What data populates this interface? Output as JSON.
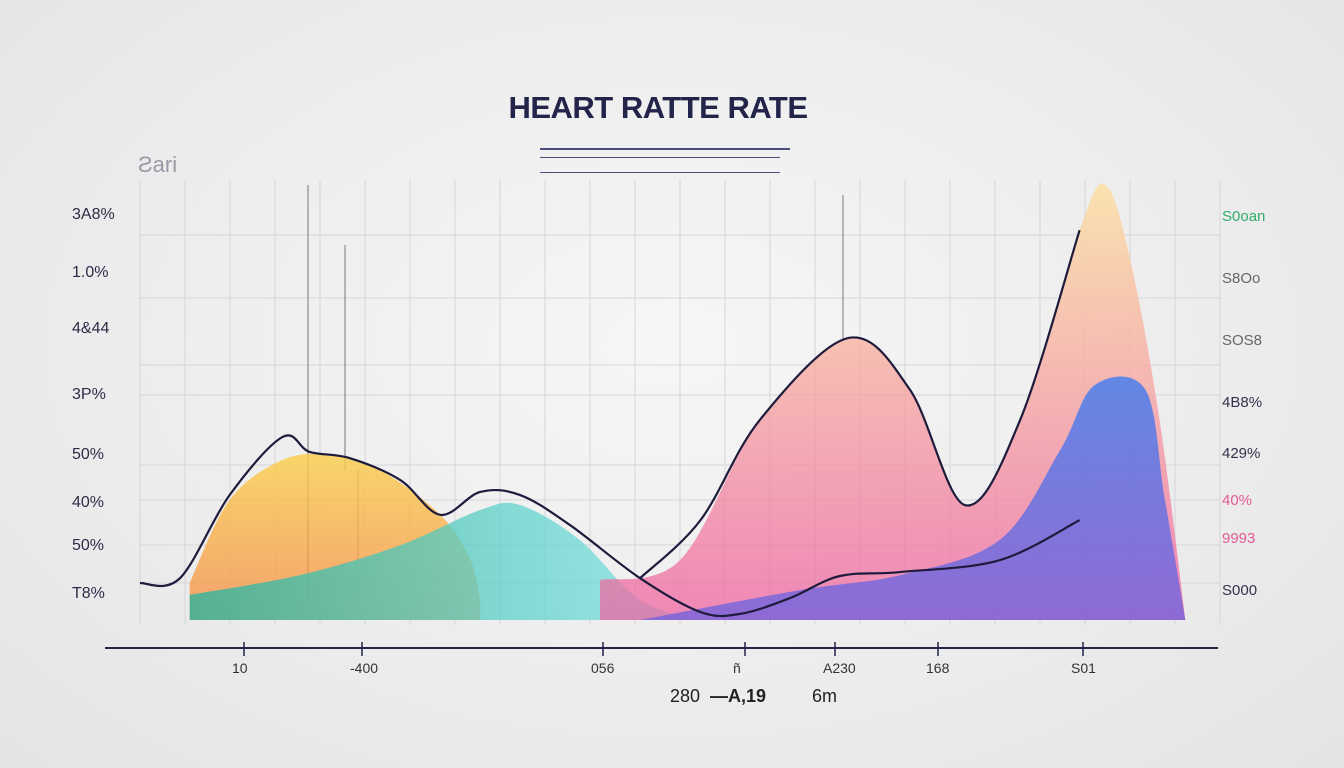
{
  "chart_data": {
    "type": "area",
    "title": "HEART RATTE RATE",
    "corner_label": "Ƨari",
    "y_ticks_left": [
      "3A8%",
      "1.0%",
      "4&44",
      "3P%",
      "50%",
      "40%",
      "50%",
      "T8%"
    ],
    "y_ticks_right": [
      {
        "text": "S0oan",
        "color": "#2fae6a"
      },
      {
        "text": "S8Oo",
        "color": "#666666"
      },
      {
        "text": "SOS8",
        "color": "#666666"
      },
      {
        "text": "4B8%",
        "color": "#33334f"
      },
      {
        "text": "429%",
        "color": "#33334f"
      },
      {
        "text": "40%",
        "color": "#e45a96"
      },
      {
        "text": "9993",
        "color": "#e45a96"
      },
      {
        "text": "S000",
        "color": "#33334f"
      }
    ],
    "x_ticks": [
      "10",
      "-400",
      "056",
      "ñ",
      "A230",
      "168",
      "S01"
    ],
    "x_subtitle": [
      "280",
      "—A,19",
      "6m"
    ],
    "grid": true,
    "xlim": [
      0,
      100
    ],
    "ylim": [
      0,
      100
    ],
    "series": [
      {
        "fill": [
          "#fbd04a",
          "#f7863c"
        ],
        "points": [
          [
            4.6,
            8.4
          ],
          [
            8.3,
            27.3
          ],
          [
            13.2,
            36.4
          ],
          [
            17.6,
            37.5
          ],
          [
            22.2,
            34.1
          ],
          [
            27.8,
            23.9
          ],
          [
            30.6,
            13.6
          ],
          [
            31.5,
            4.5
          ]
        ]
      },
      {
        "fill": [
          "#2fb39b",
          "#7de4e6"
        ],
        "points": [
          [
            4.6,
            5.7
          ],
          [
            14.8,
            10.2
          ],
          [
            24.1,
            17
          ],
          [
            31.5,
            25
          ],
          [
            35.2,
            26.1
          ],
          [
            40.7,
            18.2
          ],
          [
            46.3,
            4.5
          ],
          [
            51.9,
            0
          ]
        ]
      },
      {
        "fill": [
          "#fde0a0",
          "#ef5fa0"
        ],
        "points": [
          [
            42.6,
            9.1
          ],
          [
            50,
            13.6
          ],
          [
            57.4,
            45.5
          ],
          [
            65.6,
            64.1
          ],
          [
            71.3,
            52.3
          ],
          [
            76.4,
            26.1
          ],
          [
            81.5,
            45.5
          ],
          [
            87,
            88.6
          ],
          [
            89.4,
            98.9
          ],
          [
            91.7,
            81.8
          ],
          [
            94.4,
            45.5
          ],
          [
            96.8,
            0
          ]
        ]
      },
      {
        "fill": [
          "#3f7cf0",
          "#6a5fe0"
        ],
        "points": [
          [
            46.3,
            0
          ],
          [
            61.1,
            6.8
          ],
          [
            70.4,
            10.2
          ],
          [
            79.6,
            18.2
          ],
          [
            85.2,
            38.6
          ],
          [
            88.4,
            53.4
          ],
          [
            93.1,
            52.3
          ],
          [
            94.9,
            27.3
          ],
          [
            96.8,
            0
          ]
        ]
      }
    ],
    "lines": [
      {
        "color": "#1e1b3c",
        "points": [
          [
            0,
            8.4
          ],
          [
            3.7,
            9.5
          ],
          [
            8.3,
            28.4
          ],
          [
            13.2,
            41.6
          ],
          [
            15.7,
            38.2
          ],
          [
            19.4,
            36.8
          ],
          [
            24.1,
            31.8
          ],
          [
            27.8,
            23.9
          ],
          [
            31.5,
            29.1
          ],
          [
            35.2,
            28.4
          ],
          [
            39.8,
            21.6
          ],
          [
            46.3,
            9.5
          ],
          [
            51.9,
            1.8
          ],
          [
            55.6,
            1.4
          ],
          [
            60.2,
            5
          ],
          [
            64.8,
            10
          ],
          [
            70.4,
            10.9
          ],
          [
            79.6,
            13.6
          ],
          [
            87,
            22.7
          ]
        ]
      },
      {
        "color": "#1e1b3c",
        "points": [
          [
            46.3,
            9.5
          ],
          [
            51.9,
            22.7
          ],
          [
            57.4,
            45.5
          ],
          [
            65.6,
            64.1
          ],
          [
            71.3,
            52.3
          ],
          [
            76.4,
            26.1
          ],
          [
            81.5,
            45.5
          ],
          [
            87,
            88.6
          ]
        ]
      }
    ]
  }
}
